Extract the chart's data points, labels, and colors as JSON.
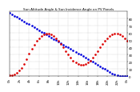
{
  "title": "Sun Altitude Angle & Sun Incidence Angle on PV Panels",
  "ylim": [
    0,
    90
  ],
  "xlim": [
    0,
    24
  ],
  "bg_color": "#ffffff",
  "grid_color": "#888888",
  "blue_x": [
    0,
    0.5,
    1,
    1.5,
    2,
    2.5,
    3,
    3.5,
    4,
    4.5,
    5,
    5.5,
    6,
    6.5,
    7,
    7.5,
    8,
    8.5,
    9,
    9.5,
    10,
    10.5,
    11,
    11.5,
    12,
    12.5,
    13,
    13.5,
    14,
    14.5,
    15,
    15.5,
    16,
    16.5,
    17,
    17.5,
    18,
    18.5,
    19,
    19.5,
    20,
    20.5,
    21,
    21.5,
    22,
    22.5,
    23,
    23.5,
    24
  ],
  "blue_y": [
    88,
    86,
    84,
    82,
    80,
    78,
    76,
    74,
    72,
    70,
    68,
    66,
    64,
    62,
    60,
    58,
    56,
    54,
    52,
    50,
    48,
    46,
    44,
    42,
    40,
    38,
    36,
    34,
    32,
    30,
    28,
    26,
    24,
    22,
    20,
    18,
    16,
    14,
    12,
    10,
    8,
    6,
    4,
    3,
    2,
    1,
    1,
    0,
    0
  ],
  "red_x": [
    0,
    0.5,
    1,
    1.5,
    2,
    2.5,
    3,
    3.5,
    4,
    4.5,
    5,
    5.5,
    6,
    6.5,
    7,
    7.5,
    8,
    8.5,
    9,
    9.5,
    10,
    10.5,
    11,
    11.5,
    12,
    12.5,
    13,
    13.5,
    14,
    14.5,
    15,
    15.5,
    16,
    16.5,
    17,
    17.5,
    18,
    18.5,
    19,
    19.5,
    20,
    20.5,
    21,
    21.5,
    22,
    22.5,
    23,
    23.5,
    24
  ],
  "red_y": [
    2,
    2,
    3,
    5,
    8,
    12,
    17,
    24,
    31,
    38,
    44,
    49,
    53,
    56,
    58,
    59,
    59,
    58,
    56,
    53,
    49,
    45,
    40,
    35,
    30,
    26,
    22,
    19,
    17,
    16,
    16,
    17,
    19,
    22,
    26,
    30,
    35,
    40,
    45,
    49,
    53,
    56,
    58,
    59,
    59,
    58,
    56,
    53,
    49
  ],
  "blue_color": "#0000dd",
  "red_color": "#dd0000",
  "marker_size": 0.9,
  "title_fontsize": 3.0,
  "tick_fontsize": 2.8,
  "ytick_positions": [
    0,
    10,
    20,
    30,
    40,
    50,
    60,
    70,
    80
  ],
  "xtick_positions": [
    0,
    2,
    4,
    6,
    8,
    10,
    12,
    14,
    16,
    18,
    20,
    22,
    24
  ],
  "xtick_labels": [
    "0h",
    "2h",
    "4h",
    "6h",
    "8h",
    "10h",
    "12h",
    "14h",
    "16h",
    "18h",
    "20h",
    "22h",
    "0h"
  ]
}
